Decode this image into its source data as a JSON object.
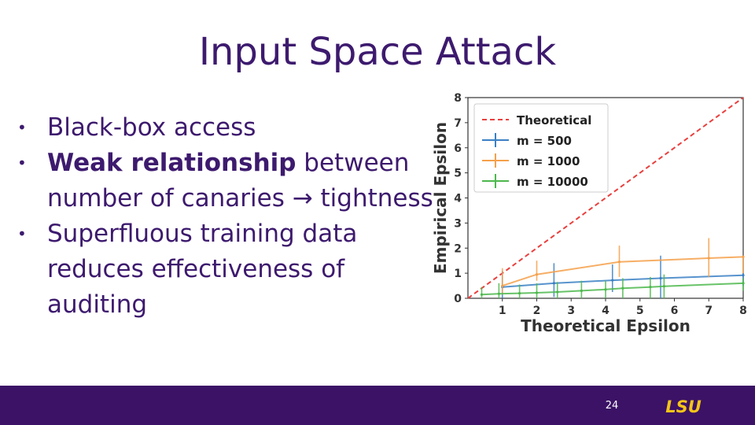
{
  "slide": {
    "title": "Input Space Attack",
    "bullets": [
      {
        "bold": "",
        "text": "Black-box access"
      },
      {
        "bold": "Weak relationship",
        "text": " between number of canaries → tightness"
      },
      {
        "bold": "",
        "text": "Superfluous training data reduces effectiveness of auditing"
      }
    ],
    "page_number": "24",
    "logo_text": "LSU"
  },
  "colors": {
    "title": "#3d1a6e",
    "footer": "#3b1266",
    "logo": "#f5c518",
    "theoretical": "#e8403e",
    "m500": "#3a80c4",
    "m1000": "#f5a04a",
    "m10000": "#4cb84c"
  },
  "chart_data": {
    "type": "line",
    "xlabel": "Theoretical Epsilon",
    "ylabel": "Empirical Epsilon",
    "xlim": [
      0,
      8
    ],
    "ylim": [
      0,
      8
    ],
    "xticks": [
      1,
      2,
      3,
      4,
      5,
      6,
      7,
      8
    ],
    "yticks": [
      0,
      1,
      2,
      3,
      4,
      5,
      6,
      7,
      8
    ],
    "legend_position": "top-left",
    "series": [
      {
        "name": "Theoretical",
        "style": "dashed",
        "color": "#e8403e",
        "x": [
          0,
          8
        ],
        "y": [
          0,
          8
        ]
      },
      {
        "name": "m = 500",
        "color": "#3a80c4",
        "x": [
          1.0,
          2.5,
          4.2,
          5.6,
          8.0
        ],
        "y": [
          0.45,
          0.6,
          0.72,
          0.8,
          0.92
        ],
        "err_low": [
          0.0,
          0.05,
          0.25,
          0.0,
          0.5
        ],
        "err_high": [
          1.1,
          1.4,
          1.35,
          1.7,
          1.0
        ]
      },
      {
        "name": "m = 1000",
        "color": "#f5a04a",
        "x": [
          1.0,
          2.0,
          4.4,
          7.0,
          8.0
        ],
        "y": [
          0.5,
          0.95,
          1.45,
          1.6,
          1.65
        ],
        "err_low": [
          0.15,
          0.7,
          0.85,
          0.85,
          1.0
        ],
        "err_high": [
          1.2,
          1.5,
          2.1,
          2.4,
          1.7
        ]
      },
      {
        "name": "m = 10000",
        "color": "#4cb84c",
        "x": [
          0.4,
          0.9,
          1.5,
          2.0,
          2.6,
          3.3,
          4.0,
          4.5,
          5.3,
          5.7,
          8.0
        ],
        "y": [
          0.15,
          0.18,
          0.2,
          0.22,
          0.25,
          0.3,
          0.35,
          0.4,
          0.45,
          0.48,
          0.6
        ],
        "err_low": [
          0.0,
          0.0,
          0.0,
          0.0,
          0.0,
          0.0,
          0.0,
          0.0,
          0.0,
          0.0,
          0.3
        ],
        "err_high": [
          0.45,
          0.6,
          0.55,
          0.6,
          0.65,
          0.7,
          0.7,
          0.8,
          0.85,
          0.95,
          0.8
        ]
      }
    ]
  }
}
